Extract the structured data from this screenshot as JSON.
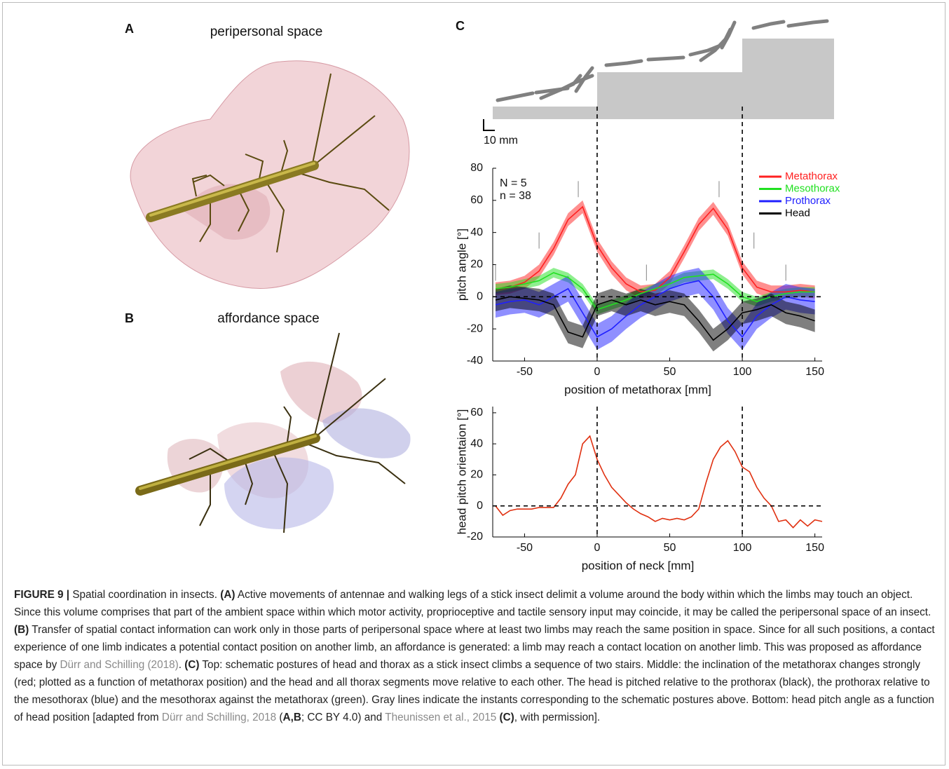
{
  "panels": {
    "a": {
      "label": "A",
      "title": "peripersonal space"
    },
    "b": {
      "label": "B",
      "title": "affordance space"
    },
    "c": {
      "label": "C",
      "scale_bar": "10 mm"
    }
  },
  "chart_data": [
    {
      "type": "line",
      "ylabel": "pitch angle [°]",
      "xlabel": "position of metathorax [mm]",
      "annotations": [
        "N = 5",
        "n = 38"
      ],
      "xlim": [
        -70,
        155
      ],
      "ylim": [
        -40,
        80
      ],
      "xticks": [
        -50,
        0,
        50,
        100,
        150
      ],
      "yticks": [
        -40,
        -20,
        0,
        20,
        40,
        60,
        80
      ],
      "ref_x": [
        0,
        100
      ],
      "ref_y": 0,
      "instants": [
        {
          "x": -70,
          "y": [
            10,
            20
          ]
        },
        {
          "x": -40,
          "y": [
            30,
            40
          ]
        },
        {
          "x": -13,
          "y": [
            62,
            72
          ]
        },
        {
          "x": 34,
          "y": [
            10,
            20
          ]
        },
        {
          "x": 84,
          "y": [
            62,
            72
          ]
        },
        {
          "x": 108,
          "y": [
            30,
            40
          ]
        },
        {
          "x": 130,
          "y": [
            10,
            20
          ]
        }
      ],
      "legend": "upper right",
      "x": [
        -70,
        -60,
        -50,
        -40,
        -30,
        -20,
        -10,
        0,
        10,
        20,
        30,
        40,
        50,
        60,
        70,
        80,
        90,
        100,
        110,
        120,
        130,
        140,
        150
      ],
      "series": [
        {
          "name": "Metathorax",
          "color": "#ff2020",
          "values": [
            5,
            6,
            9,
            16,
            30,
            48,
            56,
            32,
            18,
            8,
            3,
            4,
            12,
            28,
            45,
            55,
            42,
            18,
            6,
            3,
            3,
            4,
            3
          ],
          "lower": [
            1,
            2,
            5,
            12,
            26,
            44,
            52,
            28,
            14,
            4,
            -1,
            0,
            8,
            24,
            41,
            51,
            38,
            14,
            2,
            -1,
            -1,
            0,
            -1
          ],
          "upper": [
            9,
            10,
            13,
            20,
            34,
            52,
            60,
            36,
            22,
            12,
            7,
            8,
            16,
            32,
            49,
            59,
            46,
            22,
            10,
            7,
            7,
            8,
            7
          ]
        },
        {
          "name": "Mesothorax",
          "color": "#20e020",
          "values": [
            5,
            6,
            8,
            10,
            15,
            12,
            5,
            -8,
            -5,
            -2,
            2,
            5,
            8,
            12,
            13,
            14,
            8,
            0,
            -3,
            0,
            2,
            3,
            3
          ],
          "lower": [
            2,
            3,
            5,
            7,
            12,
            9,
            2,
            -11,
            -8,
            -5,
            -1,
            2,
            5,
            9,
            10,
            11,
            5,
            -3,
            -6,
            -3,
            -1,
            0,
            0
          ],
          "upper": [
            8,
            9,
            11,
            13,
            18,
            15,
            8,
            -5,
            -2,
            1,
            5,
            8,
            11,
            15,
            16,
            17,
            11,
            3,
            0,
            3,
            5,
            6,
            6
          ]
        },
        {
          "name": "Prothorax",
          "color": "#2020ff",
          "values": [
            -5,
            -3,
            -2,
            -5,
            0,
            5,
            -10,
            -25,
            -20,
            -12,
            -5,
            0,
            5,
            8,
            10,
            0,
            -15,
            -25,
            -12,
            -5,
            0,
            -2,
            -3
          ],
          "lower": [
            -13,
            -11,
            -10,
            -13,
            -8,
            -3,
            -18,
            -33,
            -28,
            -20,
            -13,
            -8,
            -3,
            0,
            2,
            -8,
            -23,
            -33,
            -20,
            -13,
            -8,
            -10,
            -11
          ],
          "upper": [
            3,
            5,
            6,
            3,
            8,
            13,
            -2,
            -17,
            -12,
            -4,
            3,
            8,
            13,
            16,
            18,
            8,
            -7,
            -17,
            -4,
            3,
            8,
            6,
            5
          ]
        },
        {
          "name": "Head",
          "color": "#000000",
          "values": [
            -2,
            0,
            -1,
            -2,
            -5,
            -22,
            -25,
            -5,
            -2,
            -5,
            -2,
            -5,
            -3,
            -5,
            -15,
            -27,
            -20,
            -10,
            -8,
            -5,
            -10,
            -12,
            -15
          ],
          "lower": [
            -9,
            -7,
            -8,
            -9,
            -12,
            -29,
            -32,
            -12,
            -9,
            -12,
            -9,
            -12,
            -10,
            -12,
            -22,
            -34,
            -27,
            -17,
            -15,
            -12,
            -17,
            -19,
            -22
          ],
          "upper": [
            5,
            7,
            6,
            5,
            2,
            -15,
            -18,
            2,
            5,
            2,
            5,
            2,
            4,
            2,
            -8,
            -20,
            -13,
            -3,
            -1,
            2,
            -3,
            -5,
            -8
          ]
        }
      ]
    },
    {
      "type": "line",
      "ylabel": "head pitch orientaion [°]",
      "xlabel": "position of neck [mm]",
      "xlim": [
        -70,
        155
      ],
      "ylim": [
        -20,
        64
      ],
      "xticks": [
        -50,
        0,
        50,
        100,
        150
      ],
      "yticks": [
        -20,
        0,
        20,
        40,
        60
      ],
      "ref_x": [
        0,
        100
      ],
      "ref_y": 0,
      "x": [
        -70,
        -65,
        -60,
        -55,
        -50,
        -45,
        -40,
        -35,
        -30,
        -25,
        -20,
        -15,
        -10,
        -5,
        0,
        5,
        10,
        15,
        20,
        25,
        30,
        35,
        40,
        45,
        50,
        55,
        60,
        65,
        70,
        75,
        80,
        85,
        90,
        95,
        100,
        105,
        110,
        115,
        120,
        125,
        130,
        135,
        140,
        145,
        150,
        155
      ],
      "series": [
        {
          "color": "#e03010",
          "values": [
            0,
            -6,
            -3,
            -2,
            -2,
            -2,
            -1,
            -1,
            -1,
            5,
            14,
            20,
            40,
            45,
            30,
            20,
            12,
            7,
            2,
            -2,
            -5,
            -7,
            -10,
            -8,
            -9,
            -8,
            -9,
            -7,
            -2,
            15,
            30,
            38,
            42,
            35,
            25,
            22,
            12,
            5,
            0,
            -10,
            -9,
            -14,
            -9,
            -13,
            -9,
            -10
          ]
        }
      ]
    }
  ],
  "caption": {
    "parts": [
      "FIGURE 9 |",
      " Spatial coordination in insects. ",
      "(A)",
      " Active movements of antennae and walking legs of a stick insect delimit a volume around the body within which the limbs may touch an object. Since this volume comprises that part of the ambient space within which motor activity, proprioceptive and tactile sensory input may coincide, it may be called the peripersonal space of an insect. ",
      "(B)",
      " Transfer of spatial contact information can work only in those parts of peripersonal space where at least two limbs may reach the same position in space. Since for all such positions, a contact experience of one limb indicates a potential contact position on another limb, an affordance is generated: a limb may reach a contact location on another limb. This was proposed as affordance space by ",
      "Dürr and Schilling (2018)",
      ". ",
      "(C)",
      " Top: schematic postures of head and thorax as a stick insect climbs a sequence of two stairs. Middle: the inclination of the metathorax changes strongly (red; plotted as a function of metathorax position) and the head and all thorax segments move relative to each other. The head is pitched relative to the prothorax (black), the prothorax relative to the mesothorax (blue) and the mesothorax against the metathorax (green). Gray lines indicate the instants corresponding to the schematic postures above. Bottom: head pitch angle as a function of head position [adapted from ",
      "Dürr and Schilling, 2018",
      " (",
      "A,B",
      "; CC BY 4.0) and ",
      "Theunissen et al., 2015",
      " (C)",
      ", with permission]."
    ]
  }
}
